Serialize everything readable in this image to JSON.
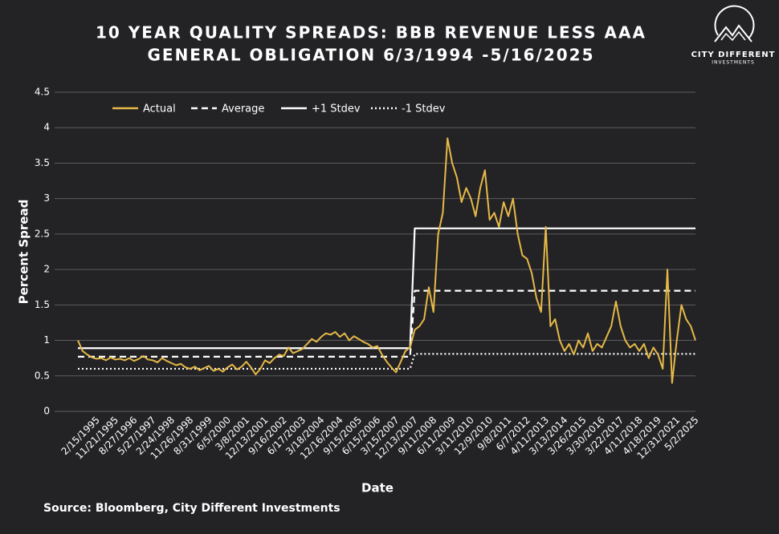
{
  "chart_data": {
    "type": "line",
    "title": [
      "10 YEAR QUALITY SPREADS: BBB REVENUE LESS AAA",
      "GENERAL OBLIGATION 6/3/1994 -5/16/2025"
    ],
    "logo_text": "CITY DIFFERENT",
    "logo_subtext": "INVESTMENTS",
    "source": "Source: Bloomberg, City Different Investments",
    "xlabel": "Date",
    "ylabel": "Percent Spread",
    "ylim": [
      0,
      4.5
    ],
    "yticks": [
      0,
      0.5,
      1,
      1.5,
      2,
      2.5,
      3,
      3.5,
      4,
      4.5
    ],
    "grid": true,
    "categories": [
      null,
      null,
      null,
      null,
      "2/15/1995",
      null,
      null,
      null,
      "11/21/1995",
      null,
      null,
      null,
      "8/27/1996",
      null,
      null,
      null,
      "5/27/1997",
      null,
      null,
      null,
      "2/24/1998",
      null,
      null,
      null,
      "11/26/1998",
      null,
      null,
      null,
      "8/31/1999",
      null,
      null,
      null,
      "6/5/2000",
      null,
      null,
      null,
      "3/8/2001",
      null,
      null,
      null,
      "12/13/2001",
      null,
      null,
      null,
      "9/16/2002",
      null,
      null,
      null,
      "6/17/2003",
      null,
      null,
      null,
      "3/18/2004",
      null,
      null,
      null,
      "12/16/2004",
      null,
      null,
      null,
      "9/15/2005",
      null,
      null,
      null,
      "6/15/2006",
      null,
      null,
      null,
      "3/15/2007",
      null,
      null,
      null,
      "12/13/2007",
      null,
      null,
      null,
      "9/11/2008",
      null,
      null,
      null,
      "6/11/2009",
      null,
      null,
      null,
      "3/11/2010",
      null,
      null,
      null,
      "12/9/2010",
      null,
      null,
      null,
      "9/8/2011",
      null,
      null,
      null,
      "6/7/2012",
      null,
      null,
      null,
      "4/11/2013",
      null,
      null,
      null,
      "3/13/2014",
      null,
      null,
      null,
      "3/26/2015",
      null,
      null,
      null,
      "3/30/2016",
      null,
      null,
      null,
      "3/22/2017",
      null,
      null,
      null,
      "4/11/2018",
      null,
      null,
      null,
      "4/18/2019",
      null,
      null,
      null,
      "12/31/2021",
      null,
      null,
      null,
      "5/2/2025"
    ],
    "series": [
      {
        "name": "Actual",
        "color": "#e6b947",
        "style": "solid",
        "values": [
          1.0,
          0.85,
          0.8,
          0.76,
          0.74,
          0.75,
          0.72,
          0.76,
          0.73,
          0.74,
          0.72,
          0.75,
          0.71,
          0.74,
          0.78,
          0.73,
          0.72,
          0.69,
          0.75,
          0.71,
          0.68,
          0.65,
          0.67,
          0.62,
          0.6,
          0.63,
          0.58,
          0.61,
          0.64,
          0.57,
          0.6,
          0.56,
          0.62,
          0.66,
          0.59,
          0.63,
          0.7,
          0.62,
          0.52,
          0.6,
          0.72,
          0.68,
          0.75,
          0.8,
          0.78,
          0.9,
          0.82,
          0.85,
          0.88,
          0.95,
          1.02,
          0.98,
          1.05,
          1.1,
          1.08,
          1.12,
          1.05,
          1.1,
          1.0,
          1.06,
          1.02,
          0.98,
          0.95,
          0.9,
          0.92,
          0.8,
          0.7,
          0.62,
          0.55,
          0.7,
          0.85,
          0.9,
          1.15,
          1.2,
          1.3,
          1.75,
          1.4,
          2.5,
          2.8,
          3.85,
          3.5,
          3.3,
          2.95,
          3.15,
          3.0,
          2.75,
          3.15,
          3.4,
          2.7,
          2.8,
          2.6,
          2.95,
          2.75,
          3.0,
          2.5,
          2.2,
          2.15,
          1.95,
          1.6,
          1.4,
          2.6,
          1.2,
          1.3,
          1.0,
          0.85,
          0.95,
          0.8,
          1.0,
          0.9,
          1.1,
          0.85,
          0.95,
          0.9,
          1.05,
          1.2,
          1.55,
          1.2,
          1.0,
          0.9,
          0.95,
          0.85,
          0.95,
          0.75,
          0.9,
          0.8,
          0.6,
          2.0,
          0.4,
          1.0,
          1.5,
          1.3,
          1.2,
          1.0
        ]
      },
      {
        "name": "Average",
        "color": "#ffffff",
        "style": "dashed",
        "values": [
          0.77,
          0.77,
          0.77,
          0.77,
          0.77,
          0.77,
          0.77,
          0.77,
          0.77,
          0.77,
          0.77,
          0.77,
          0.77,
          0.77,
          0.77,
          0.77,
          0.77,
          0.77,
          0.77,
          0.77,
          0.77,
          0.77,
          0.77,
          0.77,
          0.77,
          0.77,
          0.77,
          0.77,
          0.77,
          0.77,
          0.77,
          0.77,
          0.77,
          0.77,
          0.77,
          0.77,
          0.77,
          0.77,
          0.77,
          0.77,
          0.77,
          0.77,
          0.77,
          0.77,
          0.77,
          0.77,
          0.77,
          0.77,
          0.77,
          0.77,
          0.77,
          0.77,
          0.77,
          0.77,
          0.77,
          0.77,
          0.77,
          0.77,
          0.77,
          0.77,
          0.77,
          0.77,
          0.77,
          0.77,
          0.77,
          0.77,
          0.77,
          0.77,
          0.77,
          0.77,
          0.77,
          0.77,
          1.7,
          1.7,
          1.7,
          1.7,
          1.7,
          1.7,
          1.7,
          1.7,
          1.7,
          1.7,
          1.7,
          1.7,
          1.7,
          1.7,
          1.7,
          1.7,
          1.7,
          1.7,
          1.7,
          1.7,
          1.7,
          1.7,
          1.7,
          1.7,
          1.7,
          1.7,
          1.7,
          1.7,
          1.7,
          1.7,
          1.7,
          1.7,
          1.7,
          1.7,
          1.7,
          1.7,
          1.7,
          1.7,
          1.7,
          1.7,
          1.7,
          1.7,
          1.7,
          1.7,
          1.7,
          1.7,
          1.7,
          1.7,
          1.7,
          1.7,
          1.7,
          1.7,
          1.7,
          1.7,
          1.7,
          1.7,
          1.7,
          1.7,
          1.7,
          1.7,
          1.7
        ]
      },
      {
        "name": "+1 Stdev",
        "color": "#ffffff",
        "style": "solid",
        "values": [
          0.89,
          0.89,
          0.89,
          0.89,
          0.89,
          0.89,
          0.89,
          0.89,
          0.89,
          0.89,
          0.89,
          0.89,
          0.89,
          0.89,
          0.89,
          0.89,
          0.89,
          0.89,
          0.89,
          0.89,
          0.89,
          0.89,
          0.89,
          0.89,
          0.89,
          0.89,
          0.89,
          0.89,
          0.89,
          0.89,
          0.89,
          0.89,
          0.89,
          0.89,
          0.89,
          0.89,
          0.89,
          0.89,
          0.89,
          0.89,
          0.89,
          0.89,
          0.89,
          0.89,
          0.89,
          0.89,
          0.89,
          0.89,
          0.89,
          0.89,
          0.89,
          0.89,
          0.89,
          0.89,
          0.89,
          0.89,
          0.89,
          0.89,
          0.89,
          0.89,
          0.89,
          0.89,
          0.89,
          0.89,
          0.89,
          0.89,
          0.89,
          0.89,
          0.89,
          0.89,
          0.89,
          0.89,
          2.58,
          2.58,
          2.58,
          2.58,
          2.58,
          2.58,
          2.58,
          2.58,
          2.58,
          2.58,
          2.58,
          2.58,
          2.58,
          2.58,
          2.58,
          2.58,
          2.58,
          2.58,
          2.58,
          2.58,
          2.58,
          2.58,
          2.58,
          2.58,
          2.58,
          2.58,
          2.58,
          2.58,
          2.58,
          2.58,
          2.58,
          2.58,
          2.58,
          2.58,
          2.58,
          2.58,
          2.58,
          2.58,
          2.58,
          2.58,
          2.58,
          2.58,
          2.58,
          2.58,
          2.58,
          2.58,
          2.58,
          2.58,
          2.58,
          2.58,
          2.58,
          2.58,
          2.58,
          2.58,
          2.58,
          2.58,
          2.58,
          2.58,
          2.58,
          2.58,
          2.58
        ]
      },
      {
        "name": "-1 Stdev",
        "color": "#ffffff",
        "style": "dotted",
        "values": [
          0.6,
          0.6,
          0.6,
          0.6,
          0.6,
          0.6,
          0.6,
          0.6,
          0.6,
          0.6,
          0.6,
          0.6,
          0.6,
          0.6,
          0.6,
          0.6,
          0.6,
          0.6,
          0.6,
          0.6,
          0.6,
          0.6,
          0.6,
          0.6,
          0.6,
          0.6,
          0.6,
          0.6,
          0.6,
          0.6,
          0.6,
          0.6,
          0.6,
          0.6,
          0.6,
          0.6,
          0.6,
          0.6,
          0.6,
          0.6,
          0.6,
          0.6,
          0.6,
          0.6,
          0.6,
          0.6,
          0.6,
          0.6,
          0.6,
          0.6,
          0.6,
          0.6,
          0.6,
          0.6,
          0.6,
          0.6,
          0.6,
          0.6,
          0.6,
          0.6,
          0.6,
          0.6,
          0.6,
          0.6,
          0.6,
          0.6,
          0.6,
          0.6,
          0.6,
          0.6,
          0.6,
          0.6,
          0.81,
          0.81,
          0.81,
          0.81,
          0.81,
          0.81,
          0.81,
          0.81,
          0.81,
          0.81,
          0.81,
          0.81,
          0.81,
          0.81,
          0.81,
          0.81,
          0.81,
          0.81,
          0.81,
          0.81,
          0.81,
          0.81,
          0.81,
          0.81,
          0.81,
          0.81,
          0.81,
          0.81,
          0.81,
          0.81,
          0.81,
          0.81,
          0.81,
          0.81,
          0.81,
          0.81,
          0.81,
          0.81,
          0.81,
          0.81,
          0.81,
          0.81,
          0.81,
          0.81,
          0.81,
          0.81,
          0.81,
          0.81,
          0.81,
          0.81,
          0.81,
          0.81,
          0.81,
          0.81,
          0.81,
          0.81,
          0.81,
          0.81,
          0.81,
          0.81,
          0.81
        ]
      }
    ]
  }
}
